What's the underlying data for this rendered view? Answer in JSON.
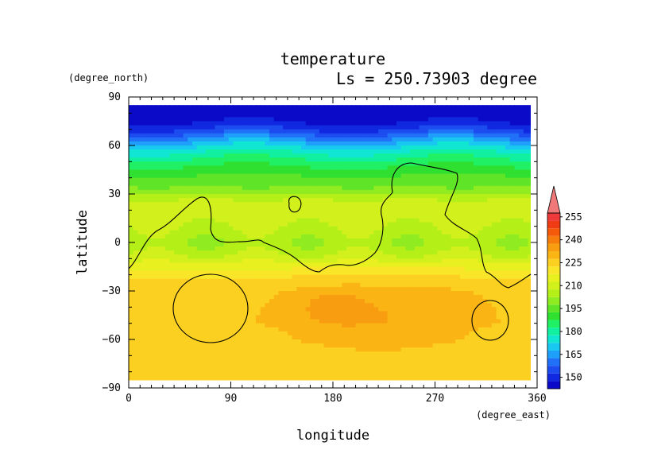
{
  "chart_data": {
    "type": "heatmap",
    "title": "temperature",
    "subtitle": "Ls = 250.73903 degree",
    "xlabel": "longitude",
    "ylabel": "latitude",
    "xunits": "(degree_east)",
    "yunits": "(degree_north)",
    "xlim": [
      0,
      360
    ],
    "ylim": [
      -90,
      90
    ],
    "data_lat_range": [
      -85,
      85
    ],
    "x_ticks": [
      "0",
      "90",
      "180",
      "270",
      "360"
    ],
    "y_ticks": [
      "90",
      "60",
      "30",
      "0",
      "−30",
      "−60",
      "−90"
    ],
    "colorbar": {
      "levels": [
        145,
        150,
        155,
        160,
        165,
        170,
        175,
        180,
        185,
        190,
        195,
        200,
        205,
        210,
        215,
        220,
        225,
        230,
        235,
        240,
        245,
        250,
        255,
        260
      ],
      "labels": [
        "150",
        "165",
        "180",
        "195",
        "210",
        "225",
        "240",
        "255"
      ],
      "colors": [
        "#0a0ac8",
        "#1028e0",
        "#1c4cf0",
        "#2070f8",
        "#1ea0fa",
        "#18c8f0",
        "#10e6d2",
        "#10f0a0",
        "#20f064",
        "#30e030",
        "#60e428",
        "#90ec20",
        "#b4f018",
        "#d2f01c",
        "#e8f020",
        "#fae628",
        "#fcd020",
        "#fab414",
        "#f89c10",
        "#f67c0c",
        "#f45a0a",
        "#f03c14",
        "#ee3a3a",
        "#f07878"
      ],
      "extend": "max"
    },
    "field_values": {
      "lat": [
        85,
        80,
        75,
        70,
        65,
        60,
        55,
        50,
        45,
        40,
        35,
        30,
        25,
        20,
        15,
        10,
        5,
        0,
        -5,
        -10,
        -15,
        -20,
        -25,
        -30,
        -35,
        -40,
        -45,
        -50,
        -55,
        -60,
        -65,
        -70,
        -75,
        -80,
        -85
      ],
      "zonal_temperature": [
        146,
        147,
        149,
        155,
        164,
        173,
        181,
        187,
        192,
        196,
        200,
        204,
        212,
        214,
        212,
        210,
        208,
        206,
        208,
        212,
        218,
        223,
        226,
        228,
        228,
        228,
        228,
        228,
        227,
        227,
        226,
        226,
        226,
        227,
        228
      ]
    },
    "warm_regions": [
      {
        "lon": [
          100,
          340
        ],
        "lat": [
          -15,
          -80
        ],
        "value_range": [
          230,
          235
        ]
      },
      {
        "lon": [
          145,
          215
        ],
        "lat": [
          -28,
          -52
        ],
        "value_range": [
          235,
          240
        ]
      }
    ]
  }
}
